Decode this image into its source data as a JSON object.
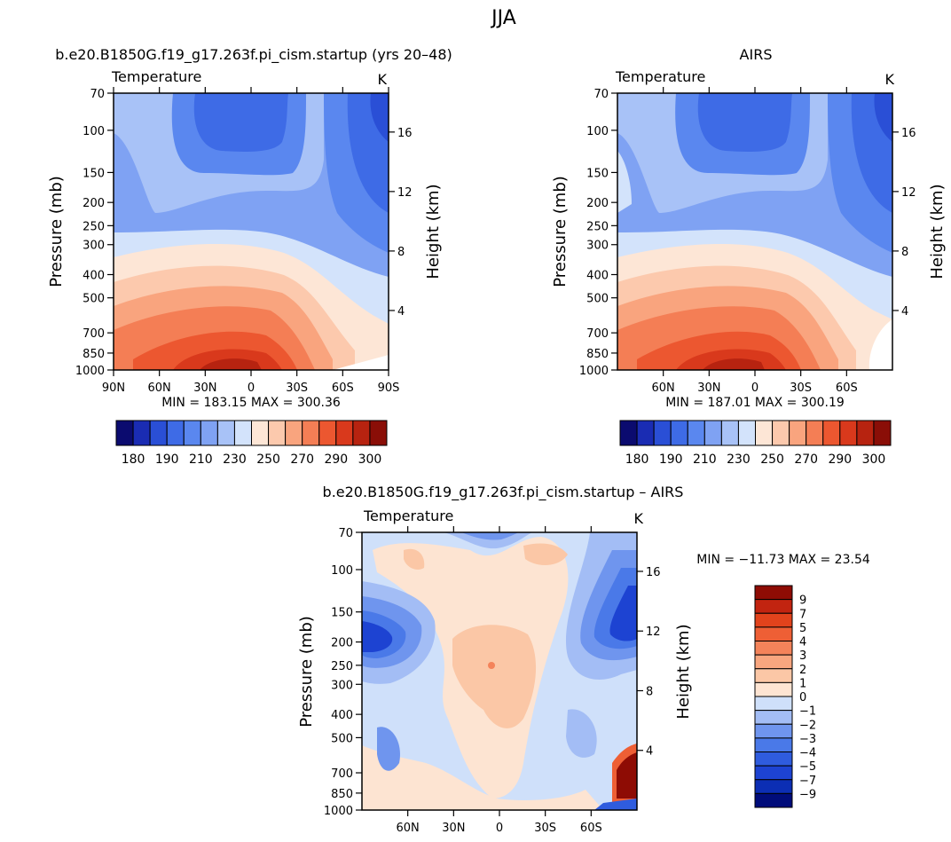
{
  "page_title": "JJA",
  "colors": {
    "temp_scale": [
      "#0b0b6f",
      "#1a2cb3",
      "#2a4fd6",
      "#3e6be6",
      "#5a87ef",
      "#7fa2f3",
      "#a8c2f7",
      "#d3e3fb",
      "#fde6d6",
      "#fcc9ad",
      "#f9a47e",
      "#f47e55",
      "#ec5730",
      "#d9391c",
      "#b72310",
      "#8a0e07"
    ],
    "diff_scale": [
      "#000c7a",
      "#0c2eb4",
      "#1d43d2",
      "#2f5cde",
      "#4a79e8",
      "#6f95ee",
      "#a3bdf5",
      "#cfe0fa",
      "#fde4d2",
      "#fbc7a6",
      "#f8a67f",
      "#f4835a",
      "#ee5f35",
      "#e2431c",
      "#c22410",
      "#8e0c04"
    ],
    "line": "#000000"
  },
  "chart_data": [
    {
      "type": "heatmap",
      "name": "model",
      "title": "b.e20.B1850G.f19_g17.263f.pi_cism.startup (yrs 20–48)",
      "variable": "Temperature",
      "units": "K",
      "xlabel": "",
      "ylabel": "Pressure (mb)",
      "y2label": "Height (km)",
      "x_ticks": [
        "90N",
        "60N",
        "30N",
        "0",
        "30S",
        "60S",
        "90S"
      ],
      "y_ticks": [
        70,
        100,
        150,
        200,
        250,
        300,
        400,
        500,
        700,
        850,
        1000
      ],
      "y2_ticks": [
        16,
        12,
        8,
        4
      ],
      "stats": "MIN = 183.15   MAX = 300.36",
      "colorbar_labels": [
        "180",
        "190",
        "210",
        "230",
        "250",
        "270",
        "290",
        "300"
      ],
      "orientation": "horizontal"
    },
    {
      "type": "heatmap",
      "name": "obs",
      "title": "AIRS",
      "variable": "Temperature",
      "units": "K",
      "xlabel": "",
      "ylabel": "Pressure (mb)",
      "y2label": "Height (km)",
      "x_ticks": [
        "60N",
        "30N",
        "0",
        "30S",
        "60S"
      ],
      "y_ticks": [
        70,
        100,
        150,
        200,
        250,
        300,
        400,
        500,
        700,
        850,
        1000
      ],
      "y2_ticks": [
        16,
        12,
        8,
        4
      ],
      "stats": "MIN = 187.01   MAX = 300.19",
      "colorbar_labels": [
        "180",
        "190",
        "210",
        "230",
        "250",
        "270",
        "290",
        "300"
      ],
      "orientation": "horizontal"
    },
    {
      "type": "heatmap",
      "name": "diff",
      "title": "b.e20.B1850G.f19_g17.263f.pi_cism.startup – AIRS",
      "variable": "Temperature",
      "units": "K",
      "xlabel": "",
      "ylabel": "Pressure (mb)",
      "y2label": "Height (km)",
      "x_ticks": [
        "60N",
        "30N",
        "0",
        "30S",
        "60S"
      ],
      "y_ticks": [
        70,
        100,
        150,
        200,
        250,
        300,
        400,
        500,
        700,
        850,
        1000
      ],
      "y2_ticks": [
        16,
        12,
        8,
        4
      ],
      "stats": "MIN = −11.73   MAX =   23.54",
      "colorbar_labels": [
        "9",
        "7",
        "5",
        "4",
        "3",
        "2",
        "1",
        "0",
        "−1",
        "−2",
        "−3",
        "−4",
        "−5",
        "−7",
        "−9"
      ],
      "orientation": "vertical"
    }
  ]
}
